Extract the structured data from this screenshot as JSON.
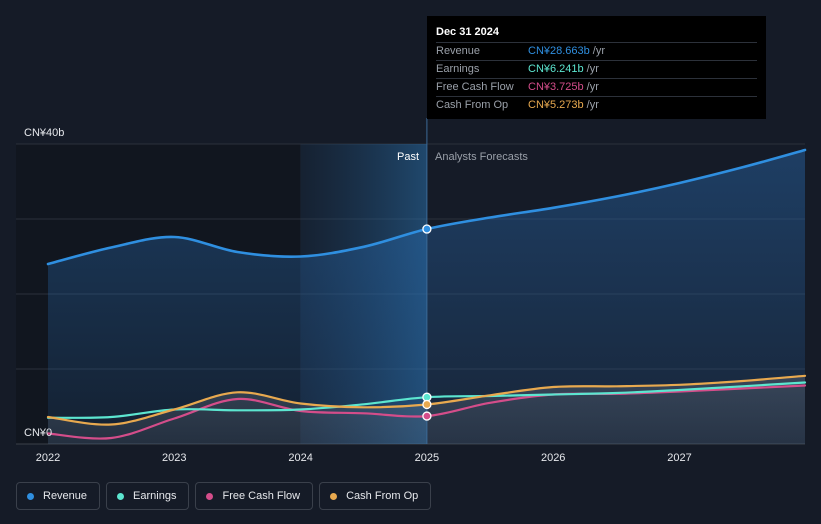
{
  "chart_data": {
    "type": "line",
    "title": "",
    "x_ticks": [
      "2022",
      "2023",
      "2024",
      "2025",
      "2026",
      "2027"
    ],
    "y_ticks": [
      "CN¥0",
      "CN¥40b"
    ],
    "ylim": [
      0,
      40
    ],
    "xlim": [
      2022.0,
      2028.0
    ],
    "past_label": "Past",
    "forecast_label": "Analysts Forecasts",
    "divider_x": 2025.0,
    "shaded_region_start": 2024.0,
    "grid": true,
    "legend_position": "bottom-left",
    "series": [
      {
        "name": "Revenue",
        "color": "#2f8fe0",
        "x": [
          2022.0,
          2022.5,
          2023.0,
          2023.5,
          2024.0,
          2024.5,
          2025.0,
          2025.5,
          2026.0,
          2026.5,
          2027.0,
          2027.5,
          2028.0
        ],
        "values": [
          24.0,
          26.2,
          27.6,
          25.6,
          25.0,
          26.3,
          28.663,
          30.2,
          31.5,
          33.0,
          34.8,
          36.9,
          39.2
        ]
      },
      {
        "name": "Earnings",
        "color": "#5ce6d0",
        "x": [
          2022.0,
          2022.5,
          2023.0,
          2023.5,
          2024.0,
          2024.5,
          2025.0,
          2025.5,
          2026.0,
          2026.5,
          2027.0,
          2027.5,
          2028.0
        ],
        "values": [
          3.5,
          3.6,
          4.6,
          4.5,
          4.6,
          5.3,
          6.241,
          6.4,
          6.6,
          6.8,
          7.2,
          7.7,
          8.2
        ]
      },
      {
        "name": "Free Cash Flow",
        "color": "#d44d8a",
        "x": [
          2022.0,
          2022.5,
          2023.0,
          2023.5,
          2024.0,
          2024.5,
          2025.0,
          2025.5,
          2026.0,
          2026.5,
          2027.0,
          2027.5,
          2028.0
        ],
        "values": [
          1.4,
          0.8,
          3.4,
          6.0,
          4.4,
          4.1,
          3.725,
          5.5,
          6.6,
          6.7,
          7.0,
          7.4,
          7.8
        ]
      },
      {
        "name": "Cash From Op",
        "color": "#e8a94f",
        "x": [
          2022.0,
          2022.5,
          2023.0,
          2023.5,
          2024.0,
          2024.5,
          2025.0,
          2025.5,
          2026.0,
          2026.5,
          2027.0,
          2027.5,
          2028.0
        ],
        "values": [
          3.6,
          2.6,
          4.6,
          6.9,
          5.4,
          4.9,
          5.273,
          6.5,
          7.6,
          7.7,
          7.9,
          8.4,
          9.1
        ]
      }
    ],
    "highlight_x": 2025.0
  },
  "tooltip": {
    "date": "Dec 31 2024",
    "rows": [
      {
        "name": "Revenue",
        "value": "CN¥28.663b",
        "unit": "/yr",
        "color": "#2f8fe0"
      },
      {
        "name": "Earnings",
        "value": "CN¥6.241b",
        "unit": "/yr",
        "color": "#5ce6d0"
      },
      {
        "name": "Free Cash Flow",
        "value": "CN¥3.725b",
        "unit": "/yr",
        "color": "#d44d8a"
      },
      {
        "name": "Cash From Op",
        "value": "CN¥5.273b",
        "unit": "/yr",
        "color": "#e8a94f"
      }
    ]
  },
  "legend": [
    {
      "label": "Revenue",
      "color": "#2f8fe0"
    },
    {
      "label": "Earnings",
      "color": "#5ce6d0"
    },
    {
      "label": "Free Cash Flow",
      "color": "#d44d8a"
    },
    {
      "label": "Cash From Op",
      "color": "#e8a94f"
    }
  ]
}
